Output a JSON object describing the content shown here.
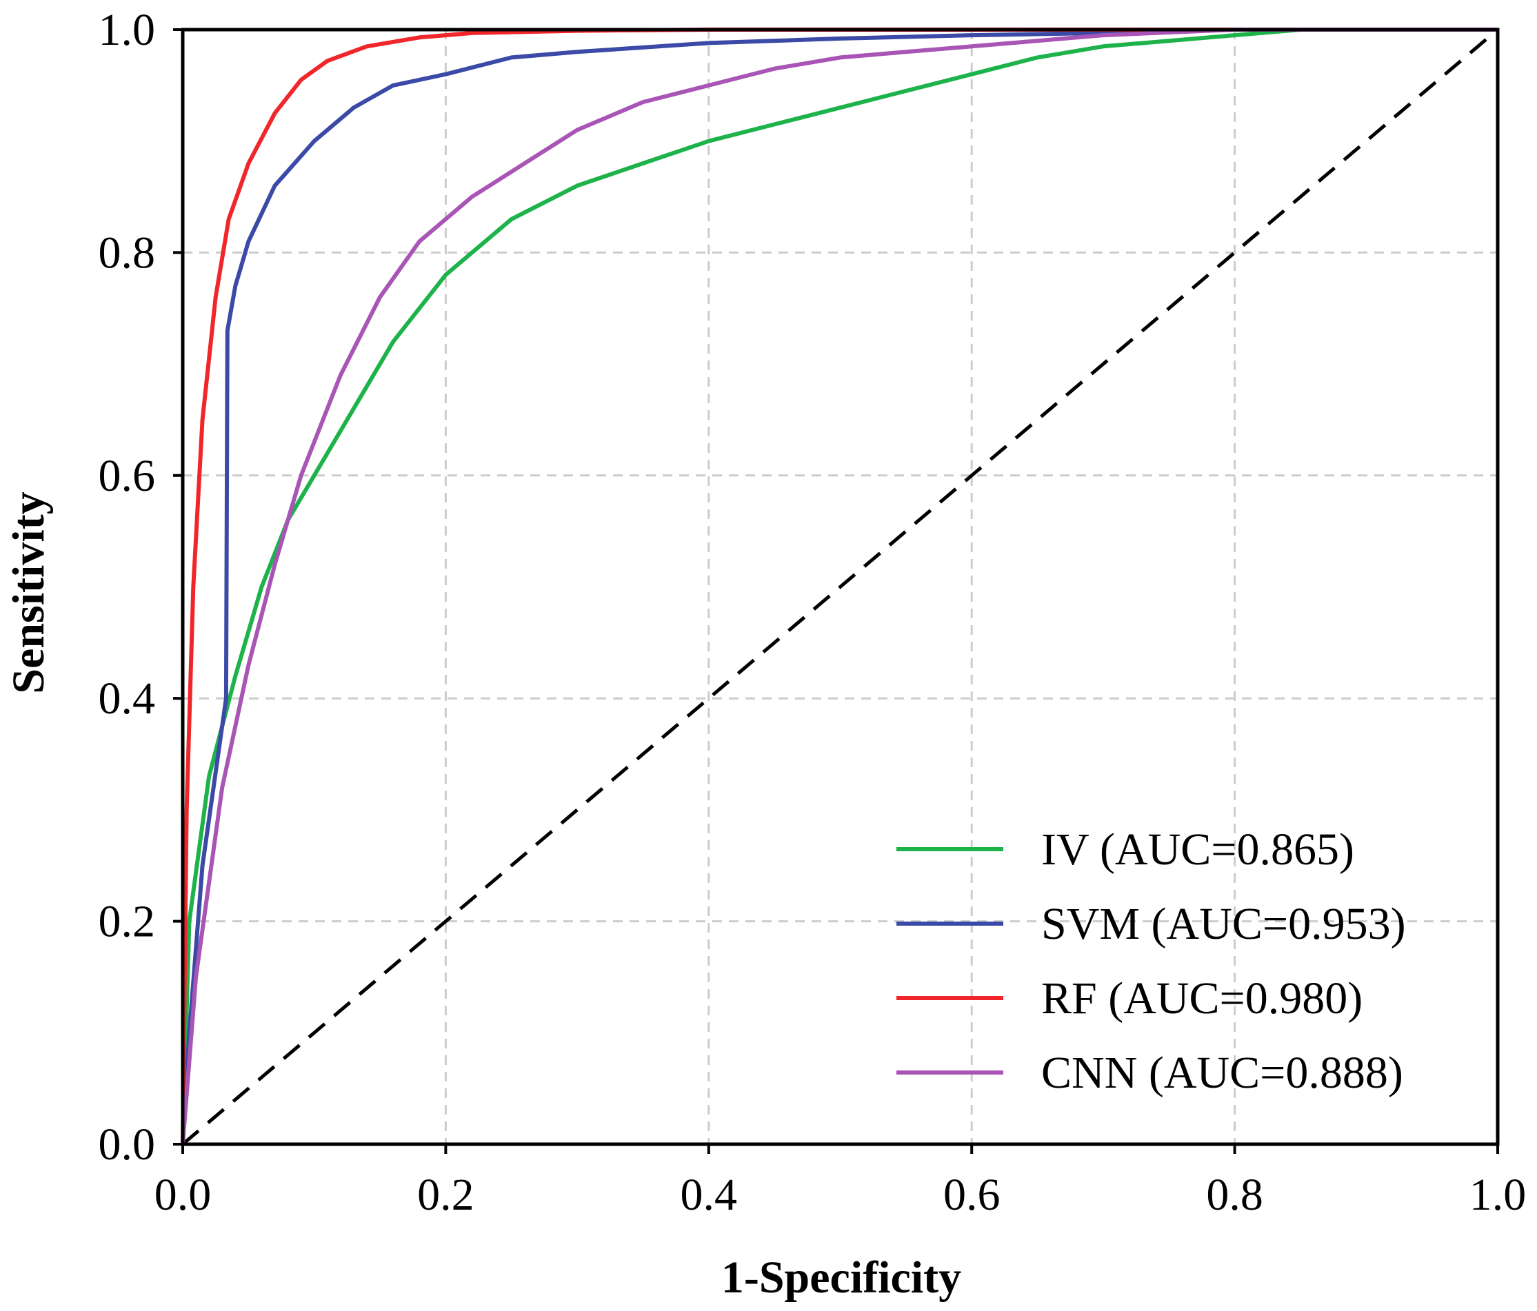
{
  "chart_data": {
    "type": "line",
    "title": "",
    "xlabel": "1-Specificity",
    "ylabel": "Sensitivity",
    "xlim": [
      0,
      1
    ],
    "ylim": [
      0,
      1
    ],
    "x_ticks": [
      "0.0",
      "0.2",
      "0.4",
      "0.6",
      "0.8",
      "1.0"
    ],
    "y_ticks": [
      "0.0",
      "0.2",
      "0.4",
      "0.6",
      "0.8",
      "1.0"
    ],
    "grid": true,
    "legend_position": "bottom-right",
    "reference_line": {
      "style": "dashed",
      "color": "#000000",
      "x": [
        0,
        1
      ],
      "y": [
        0,
        1
      ]
    },
    "series": [
      {
        "name": "IV (AUC=0.865)",
        "color": "#1db34a",
        "x": [
          0,
          0.005,
          0.02,
          0.04,
          0.06,
          0.08,
          0.1,
          0.13,
          0.16,
          0.2,
          0.25,
          0.3,
          0.35,
          0.4,
          0.45,
          0.5,
          0.55,
          0.6,
          0.65,
          0.7,
          0.75,
          0.8,
          0.85,
          1.0
        ],
        "y": [
          0,
          0.2,
          0.33,
          0.42,
          0.5,
          0.56,
          0.6,
          0.66,
          0.72,
          0.78,
          0.83,
          0.86,
          0.88,
          0.9,
          0.915,
          0.93,
          0.945,
          0.96,
          0.975,
          0.985,
          0.99,
          0.995,
          1.0,
          1.0
        ]
      },
      {
        "name": "SVM (AUC=0.953)",
        "color": "#3a4aa6",
        "x": [
          0,
          0.005,
          0.015,
          0.033,
          0.034,
          0.04,
          0.05,
          0.07,
          0.1,
          0.13,
          0.16,
          0.2,
          0.25,
          0.3,
          0.4,
          0.5,
          0.6,
          0.7,
          0.8,
          1.0
        ],
        "y": [
          0,
          0.1,
          0.25,
          0.4,
          0.73,
          0.77,
          0.81,
          0.86,
          0.9,
          0.93,
          0.95,
          0.96,
          0.975,
          0.98,
          0.988,
          0.992,
          0.995,
          0.997,
          1.0,
          1.0
        ]
      },
      {
        "name": "RF (AUC=0.980)",
        "color": "#f0262b",
        "x": [
          0,
          0.003,
          0.008,
          0.015,
          0.025,
          0.035,
          0.05,
          0.07,
          0.09,
          0.11,
          0.14,
          0.18,
          0.22,
          0.3,
          0.4,
          1.0
        ],
        "y": [
          0,
          0.3,
          0.5,
          0.65,
          0.76,
          0.83,
          0.88,
          0.925,
          0.955,
          0.972,
          0.985,
          0.993,
          0.997,
          0.999,
          1.0,
          1.0
        ]
      },
      {
        "name": "CNN (AUC=0.888)",
        "color": "#a855b5",
        "x": [
          0,
          0.01,
          0.03,
          0.05,
          0.07,
          0.09,
          0.12,
          0.15,
          0.18,
          0.22,
          0.26,
          0.3,
          0.35,
          0.4,
          0.45,
          0.5,
          0.55,
          0.6,
          0.7,
          0.8,
          0.85,
          1.0
        ],
        "y": [
          0,
          0.15,
          0.32,
          0.43,
          0.52,
          0.6,
          0.69,
          0.76,
          0.81,
          0.85,
          0.88,
          0.91,
          0.935,
          0.95,
          0.965,
          0.975,
          0.98,
          0.985,
          0.995,
          1.0,
          1.0,
          1.0
        ]
      }
    ]
  }
}
